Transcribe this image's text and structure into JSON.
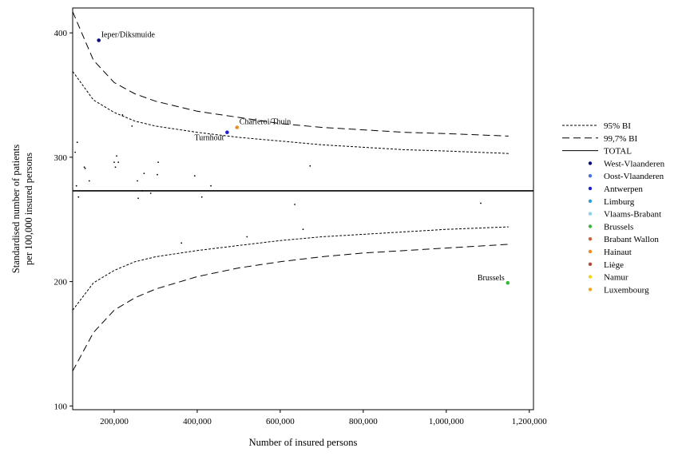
{
  "chart_data": {
    "type": "scatter",
    "xlabel": "Number of insured persons",
    "ylabel_lines": [
      "Standardised number of patients",
      "per 100,000 insured persons"
    ],
    "xlim": [
      100000,
      1210000
    ],
    "ylim": [
      97,
      420
    ],
    "x_ticks": [
      200000,
      400000,
      600000,
      800000,
      1000000,
      1200000
    ],
    "x_tick_labels": [
      "200,000",
      "400,000",
      "600,000",
      "800,000",
      "1,000,000",
      "1,200,000"
    ],
    "y_ticks": [
      100,
      200,
      300,
      400
    ],
    "y_tick_labels": [
      "100",
      "200",
      "300",
      "400"
    ],
    "grid": false,
    "legend_position": "right",
    "total_value": 273,
    "colors": {
      "West-Vlaanderen": "#0b0b7a",
      "Oost-Vlaanderen": "#4a72d6",
      "Antwerpen": "#1f1fd6",
      "Limburg": "#2f9fd8",
      "Vlaams-Brabant": "#8fd0ef",
      "Brussels": "#3cb53c",
      "Brabant Wallon": "#c8643c",
      "Hainaut": "#f08a1e",
      "Liège": "#b04a3a",
      "Namur": "#f2d21a",
      "Luxembourg": "#f2a41a"
    },
    "legend": [
      {
        "label": "95% BI",
        "kind": "line",
        "dash": "short"
      },
      {
        "label": "99,7% BI",
        "kind": "line",
        "dash": "long"
      },
      {
        "label": "TOTAL",
        "kind": "line",
        "dash": "solid"
      },
      {
        "label": "West-Vlaanderen",
        "kind": "dot",
        "color": "#0b0b7a"
      },
      {
        "label": "Oost-Vlaanderen",
        "kind": "dot",
        "color": "#4a72d6"
      },
      {
        "label": "Antwerpen",
        "kind": "dot",
        "color": "#1f1fd6"
      },
      {
        "label": "Limburg",
        "kind": "dot",
        "color": "#2f9fd8"
      },
      {
        "label": "Vlaams-Brabant",
        "kind": "dot",
        "color": "#8fd0ef"
      },
      {
        "label": "Brussels",
        "kind": "dot",
        "color": "#3cb53c"
      },
      {
        "label": "Brabant Wallon",
        "kind": "dot",
        "color": "#c8643c"
      },
      {
        "label": "Hainaut",
        "kind": "dot",
        "color": "#f08a1e"
      },
      {
        "label": "Liège",
        "kind": "dot",
        "color": "#b04a3a"
      },
      {
        "label": "Namur",
        "kind": "dot",
        "color": "#f2d21a"
      },
      {
        "label": "Luxembourg",
        "kind": "dot",
        "color": "#f2a41a"
      }
    ],
    "series": [
      {
        "name": "95% BI",
        "style": "short-dash",
        "part": "upper",
        "points": [
          [
            100000,
            369
          ],
          [
            150000,
            346
          ],
          [
            200000,
            336
          ],
          [
            250000,
            329
          ],
          [
            300000,
            325
          ],
          [
            400000,
            320
          ],
          [
            500000,
            316
          ],
          [
            600000,
            313
          ],
          [
            700000,
            310
          ],
          [
            800000,
            308
          ],
          [
            900000,
            306
          ],
          [
            1000000,
            305
          ],
          [
            1150000,
            303
          ]
        ]
      },
      {
        "name": "95% BI",
        "style": "short-dash",
        "part": "lower",
        "points": [
          [
            100000,
            177
          ],
          [
            150000,
            199
          ],
          [
            200000,
            209
          ],
          [
            250000,
            216
          ],
          [
            300000,
            220
          ],
          [
            400000,
            225
          ],
          [
            500000,
            229
          ],
          [
            600000,
            233
          ],
          [
            700000,
            236
          ],
          [
            800000,
            238
          ],
          [
            900000,
            240
          ],
          [
            1000000,
            242
          ],
          [
            1150000,
            244
          ]
        ]
      },
      {
        "name": "99,7% BI",
        "style": "long-dash",
        "part": "upper",
        "points": [
          [
            100000,
            417
          ],
          [
            150000,
            378
          ],
          [
            200000,
            360
          ],
          [
            250000,
            351
          ],
          [
            300000,
            345
          ],
          [
            400000,
            337
          ],
          [
            500000,
            332
          ],
          [
            600000,
            327
          ],
          [
            700000,
            324
          ],
          [
            800000,
            322
          ],
          [
            900000,
            320
          ],
          [
            1000000,
            319
          ],
          [
            1150000,
            317
          ]
        ]
      },
      {
        "name": "99,7% BI",
        "style": "long-dash",
        "part": "lower",
        "points": [
          [
            100000,
            128
          ],
          [
            150000,
            159
          ],
          [
            200000,
            177
          ],
          [
            250000,
            187
          ],
          [
            300000,
            194
          ],
          [
            400000,
            204
          ],
          [
            500000,
            211
          ],
          [
            600000,
            216
          ],
          [
            700000,
            220
          ],
          [
            800000,
            223
          ],
          [
            900000,
            225
          ],
          [
            1000000,
            227
          ],
          [
            1150000,
            230
          ]
        ]
      }
    ],
    "points": [
      {
        "x": 163000,
        "y": 394,
        "color": "#0b0b7a",
        "label": "Ieper/Diksmuide",
        "label_pos": "right-above"
      },
      {
        "x": 472000,
        "y": 320,
        "color": "#1f1fd6",
        "label": "Turnhout",
        "label_pos": "left-below"
      },
      {
        "x": 496000,
        "y": 324,
        "color": "#f08a1e",
        "label": "Charleroi/Thuin",
        "label_pos": "right-above"
      },
      {
        "x": 1148000,
        "y": 199,
        "color": "#3cb53c",
        "label": "Brussels",
        "label_pos": "left-above"
      },
      {
        "x": 106000,
        "y": 304,
        "color": "#000000"
      },
      {
        "x": 111000,
        "y": 312,
        "color": "#000000"
      },
      {
        "x": 109000,
        "y": 277,
        "color": "#000000"
      },
      {
        "x": 114000,
        "y": 268,
        "color": "#000000"
      },
      {
        "x": 128000,
        "y": 292,
        "color": "#000000"
      },
      {
        "x": 130000,
        "y": 291,
        "color": "#000000"
      },
      {
        "x": 140000,
        "y": 281,
        "color": "#000000"
      },
      {
        "x": 200000,
        "y": 296,
        "color": "#000000"
      },
      {
        "x": 203000,
        "y": 292,
        "color": "#000000"
      },
      {
        "x": 206000,
        "y": 301,
        "color": "#000000"
      },
      {
        "x": 210000,
        "y": 296,
        "color": "#000000"
      },
      {
        "x": 220000,
        "y": 334,
        "color": "#000000"
      },
      {
        "x": 243000,
        "y": 325,
        "color": "#000000"
      },
      {
        "x": 256000,
        "y": 281,
        "color": "#000000"
      },
      {
        "x": 258000,
        "y": 267,
        "color": "#000000"
      },
      {
        "x": 268000,
        "y": 273,
        "color": "#000000"
      },
      {
        "x": 272000,
        "y": 287,
        "color": "#000000"
      },
      {
        "x": 288000,
        "y": 271,
        "color": "#000000"
      },
      {
        "x": 304000,
        "y": 286,
        "color": "#000000"
      },
      {
        "x": 306000,
        "y": 296,
        "color": "#000000"
      },
      {
        "x": 362000,
        "y": 231,
        "color": "#000000"
      },
      {
        "x": 394000,
        "y": 285,
        "color": "#000000"
      },
      {
        "x": 411000,
        "y": 268,
        "color": "#000000"
      },
      {
        "x": 433000,
        "y": 277,
        "color": "#000000"
      },
      {
        "x": 520000,
        "y": 236,
        "color": "#000000"
      },
      {
        "x": 635000,
        "y": 262,
        "color": "#000000"
      },
      {
        "x": 655000,
        "y": 242,
        "color": "#000000"
      },
      {
        "x": 672000,
        "y": 293,
        "color": "#000000"
      },
      {
        "x": 1083000,
        "y": 263,
        "color": "#000000"
      }
    ]
  }
}
